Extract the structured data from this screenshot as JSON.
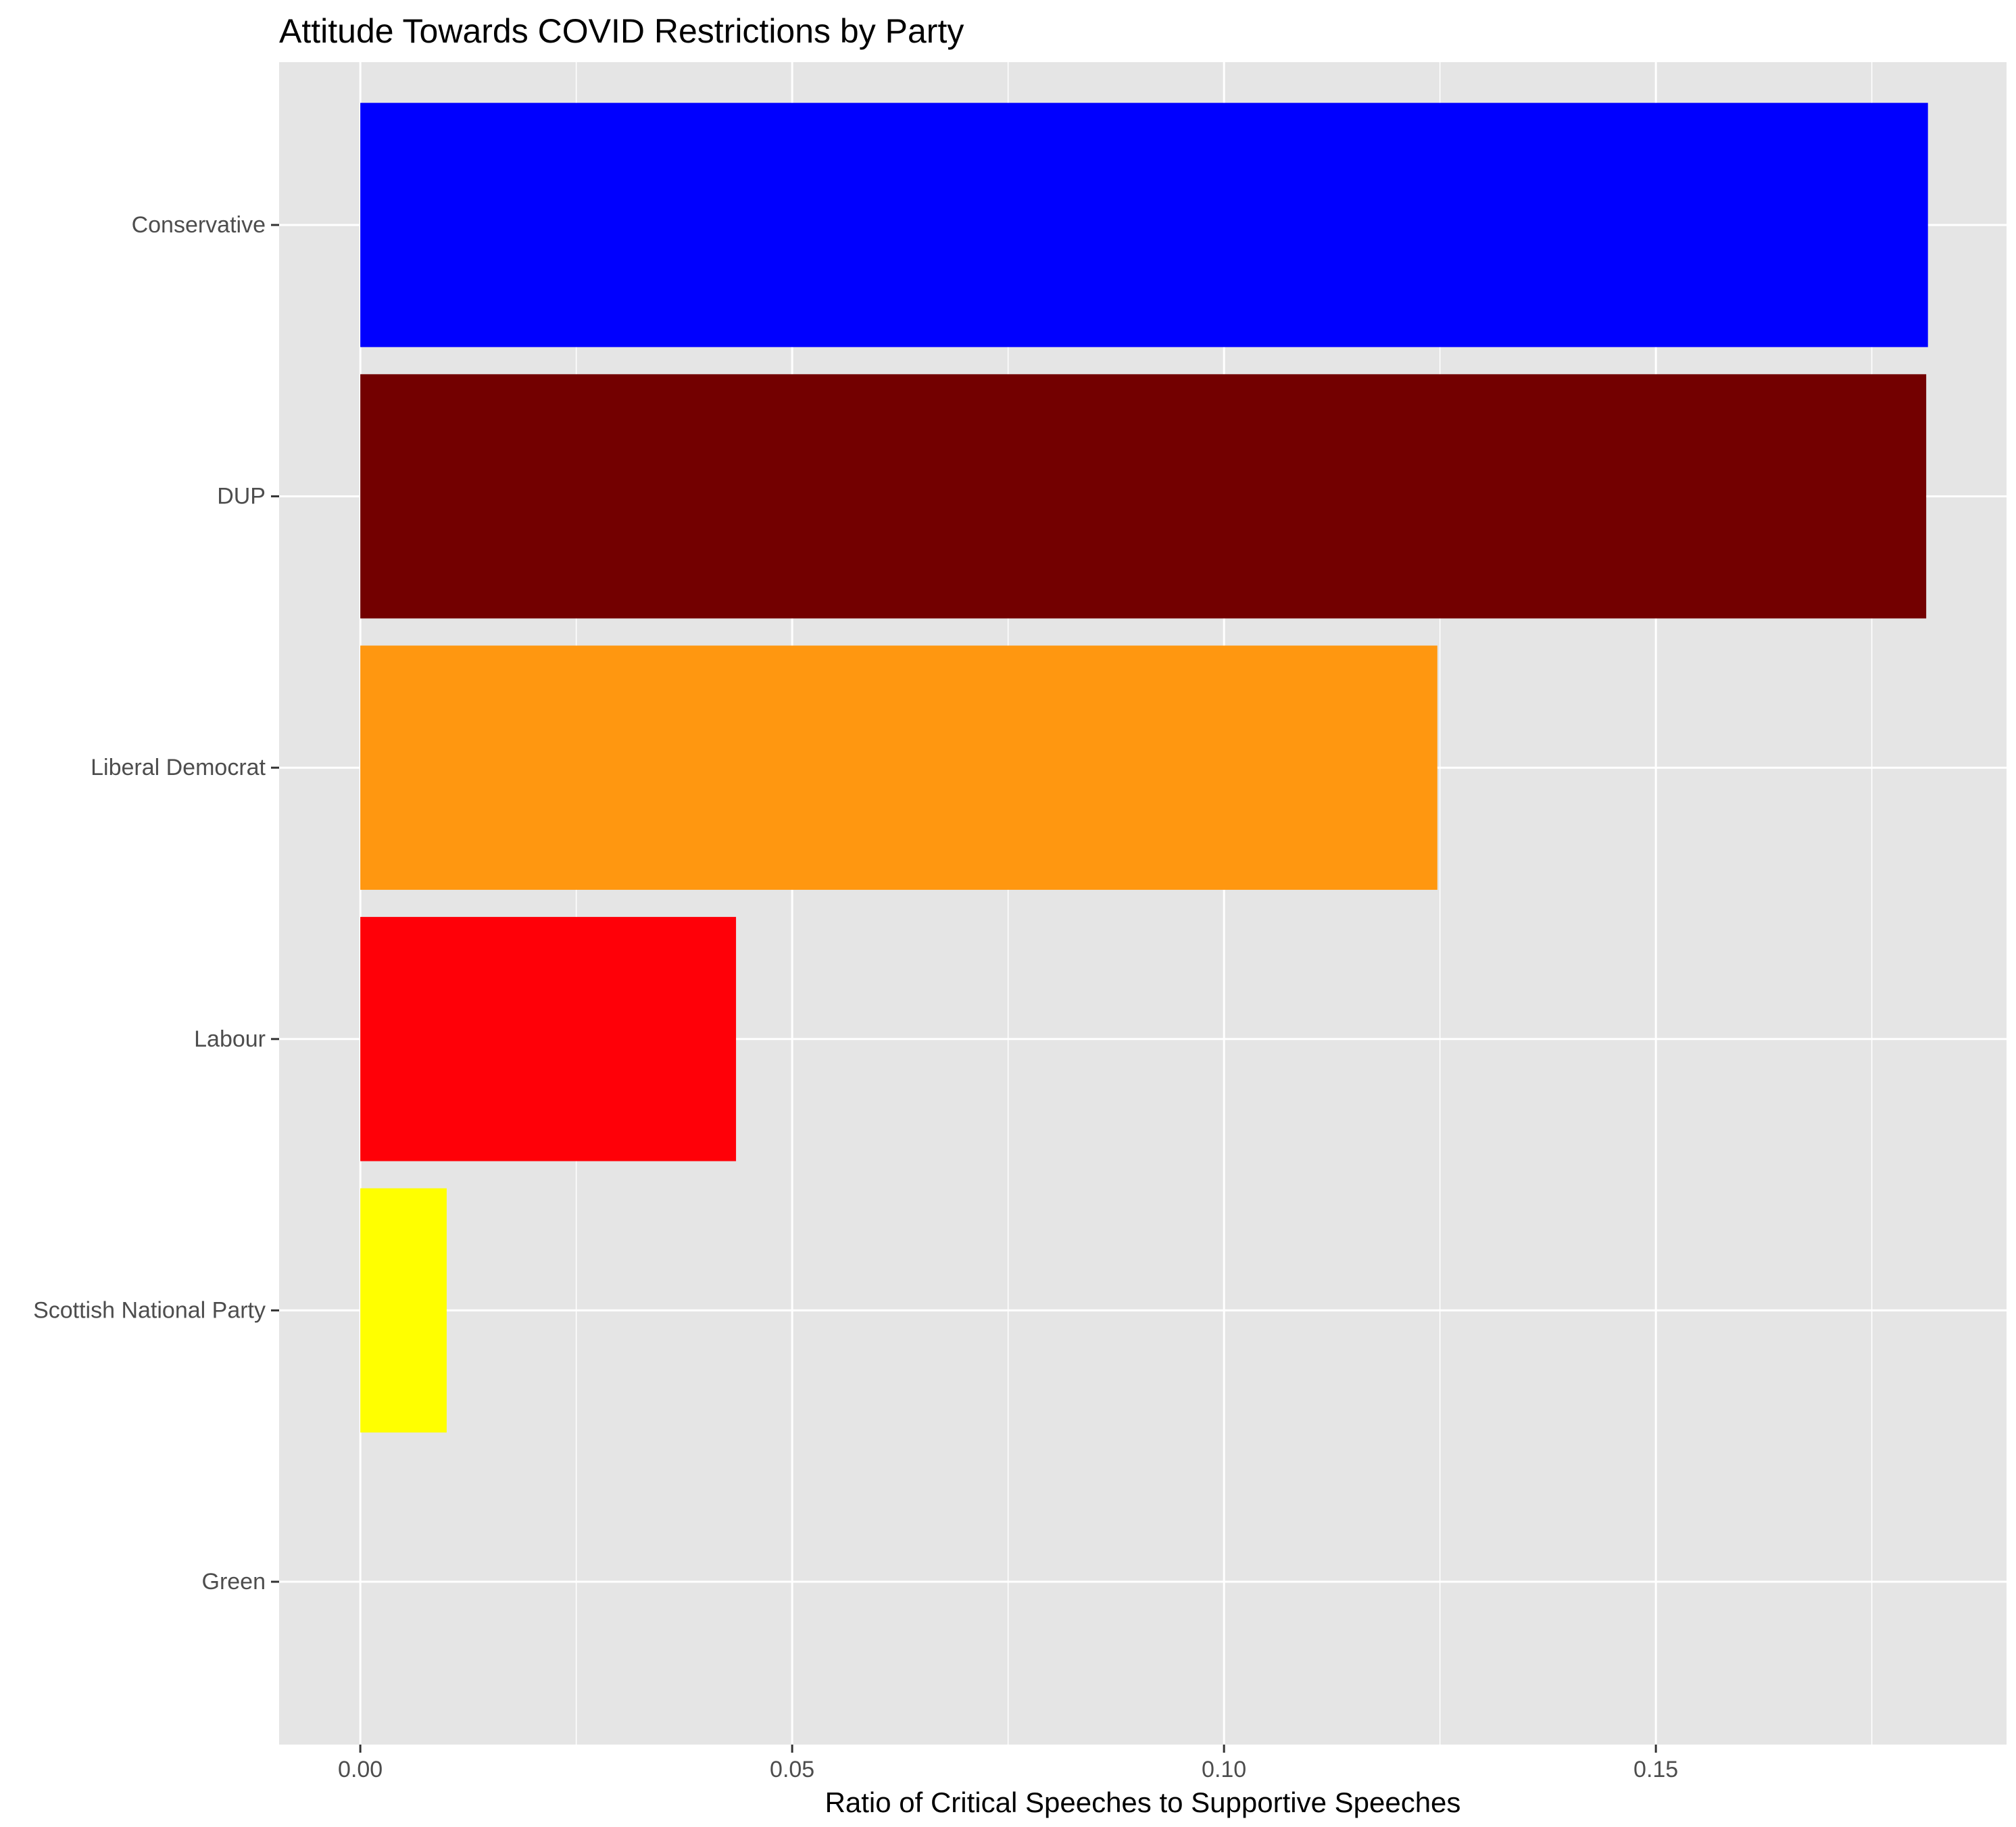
{
  "chart_data": {
    "type": "bar",
    "orientation": "horizontal",
    "title": "Attitude Towards COVID Restrictions by Party",
    "xlabel": "Ratio of  Critical Speeches to Supportive Speeches",
    "ylabel": "",
    "categories": [
      "Conservative",
      "DUP",
      "Liberal Democrat",
      "Labour",
      "Scottish National Party",
      "Green"
    ],
    "values": [
      0.1815,
      0.1813,
      0.1247,
      0.0435,
      0.01,
      0
    ],
    "colors": [
      "#0000FF",
      "#730000",
      "#FF9710",
      "#FF0008",
      "#FFFF00",
      "#00AA00"
    ],
    "xlim": [
      -0.0094,
      0.1906
    ],
    "xticks": [
      0,
      0.05,
      0.1,
      0.15
    ],
    "xtick_labels": [
      "0.00",
      "0.05",
      "0.10",
      "0.15"
    ],
    "grid": true,
    "legend": "none",
    "panel_background": "#E5E5E5"
  }
}
